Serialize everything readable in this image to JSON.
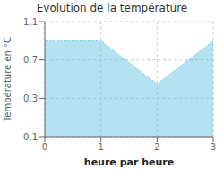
{
  "chart_data": {
    "type": "area",
    "title": "Evolution de la température",
    "xlabel": "heure par heure",
    "ylabel": "Température en °C",
    "x": [
      0,
      1,
      2,
      3
    ],
    "values": [
      0.9,
      0.9,
      0.45,
      0.9
    ],
    "xlim": [
      0,
      3
    ],
    "ylim": [
      -0.1,
      1.1
    ],
    "xticks": [
      0,
      1,
      2,
      3
    ],
    "yticks": [
      -0.1,
      0.3,
      0.7,
      1.1
    ],
    "color": "#5bbfdf",
    "line_style": "dotted",
    "grid": true
  }
}
